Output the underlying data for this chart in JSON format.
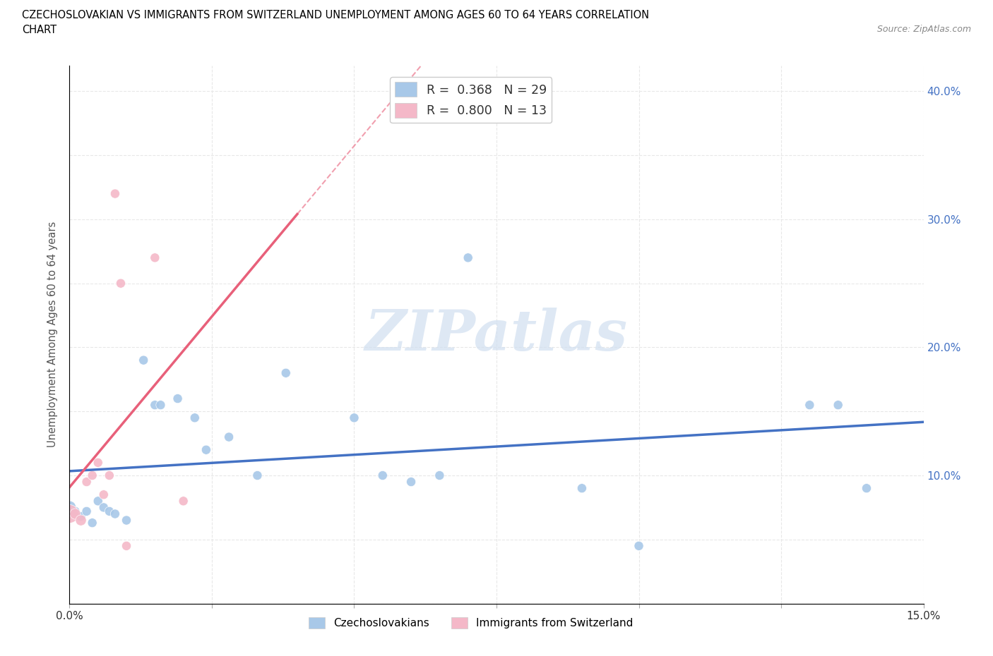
{
  "title_line1": "CZECHOSLOVAKIAN VS IMMIGRANTS FROM SWITZERLAND UNEMPLOYMENT AMONG AGES 60 TO 64 YEARS CORRELATION",
  "title_line2": "CHART",
  "source": "Source: ZipAtlas.com",
  "ylabel": "Unemployment Among Ages 60 to 64 years",
  "xlim": [
    0.0,
    0.15
  ],
  "ylim": [
    0.0,
    0.42
  ],
  "xticks": [
    0.0,
    0.025,
    0.05,
    0.075,
    0.1,
    0.125,
    0.15
  ],
  "yticks": [
    0.0,
    0.05,
    0.1,
    0.15,
    0.2,
    0.25,
    0.3,
    0.35,
    0.4
  ],
  "czechoslovakians_x": [
    0.0,
    0.001,
    0.002,
    0.003,
    0.004,
    0.005,
    0.006,
    0.007,
    0.008,
    0.01,
    0.013,
    0.015,
    0.016,
    0.019,
    0.022,
    0.024,
    0.028,
    0.033,
    0.038,
    0.05,
    0.055,
    0.06,
    0.065,
    0.07,
    0.09,
    0.1,
    0.13,
    0.135,
    0.14
  ],
  "czechoslovakians_y": [
    0.075,
    0.072,
    0.068,
    0.072,
    0.063,
    0.08,
    0.075,
    0.072,
    0.07,
    0.065,
    0.19,
    0.155,
    0.155,
    0.16,
    0.145,
    0.12,
    0.13,
    0.1,
    0.18,
    0.145,
    0.1,
    0.095,
    0.1,
    0.27,
    0.09,
    0.045,
    0.155,
    0.155,
    0.09
  ],
  "czechoslovakians_sizes": [
    200,
    100,
    100,
    100,
    100,
    100,
    100,
    100,
    100,
    100,
    100,
    100,
    100,
    100,
    100,
    100,
    100,
    100,
    100,
    100,
    100,
    100,
    100,
    100,
    100,
    100,
    100,
    100,
    100
  ],
  "swiss_x": [
    0.0,
    0.001,
    0.002,
    0.003,
    0.004,
    0.005,
    0.006,
    0.007,
    0.008,
    0.009,
    0.01,
    0.015,
    0.02
  ],
  "swiss_y": [
    0.07,
    0.07,
    0.065,
    0.095,
    0.1,
    0.11,
    0.085,
    0.1,
    0.32,
    0.25,
    0.045,
    0.27,
    0.08
  ],
  "swiss_sizes": [
    400,
    200,
    100,
    100,
    100,
    100,
    100,
    100,
    100,
    100,
    100,
    100,
    100
  ],
  "czech_R": 0.368,
  "czech_N": 29,
  "swiss_R": 0.8,
  "swiss_N": 13,
  "czech_color": "#a8c8e8",
  "swiss_color": "#f4b8c8",
  "czech_line_color": "#4472c4",
  "swiss_line_color": "#e8607a",
  "tick_label_color": "#4472c4",
  "watermark_text": "ZIPatlas",
  "grid_color": "#e8e8e8",
  "grid_style": "--"
}
